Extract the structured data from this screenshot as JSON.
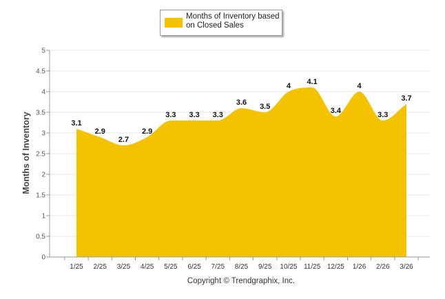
{
  "chart_data": {
    "type": "area",
    "categories": [
      "1/25",
      "2/25",
      "3/25",
      "4/25",
      "5/25",
      "6/25",
      "7/25",
      "8/25",
      "9/25",
      "10/25",
      "11/25",
      "12/25",
      "1/26",
      "2/26",
      "3/26"
    ],
    "series": [
      {
        "name": "Months of Inventory based on Closed Sales",
        "values": [
          3.1,
          2.9,
          2.7,
          2.9,
          3.3,
          3.3,
          3.3,
          3.6,
          3.5,
          4,
          4.1,
          3.4,
          4,
          3.3,
          3.7
        ]
      }
    ],
    "data_labels": [
      "3.1",
      "2.9",
      "2.7",
      "2.9",
      "3.3",
      "3.3",
      "3.3",
      "3.6",
      "3.5",
      "4",
      "4.1",
      "3.4",
      "4",
      "3.3",
      "3.7"
    ],
    "y_ticks": [
      "0",
      "0.5",
      "1",
      "1.5",
      "2",
      "2.5",
      "3",
      "3.5",
      "4",
      "4.5",
      "5"
    ],
    "ylim": [
      0,
      5
    ],
    "ylabel": "Months of Inventory",
    "xlabel": "",
    "grid": true,
    "legend_position": "top-center",
    "colors": {
      "fill": "#f5c200",
      "grid": "#e6e6e6",
      "axis": "#999999"
    }
  },
  "legend": {
    "label": "Months of Inventory based on Closed Sales"
  },
  "footer": {
    "copyright": "Copyright © Trendgraphix, Inc."
  }
}
